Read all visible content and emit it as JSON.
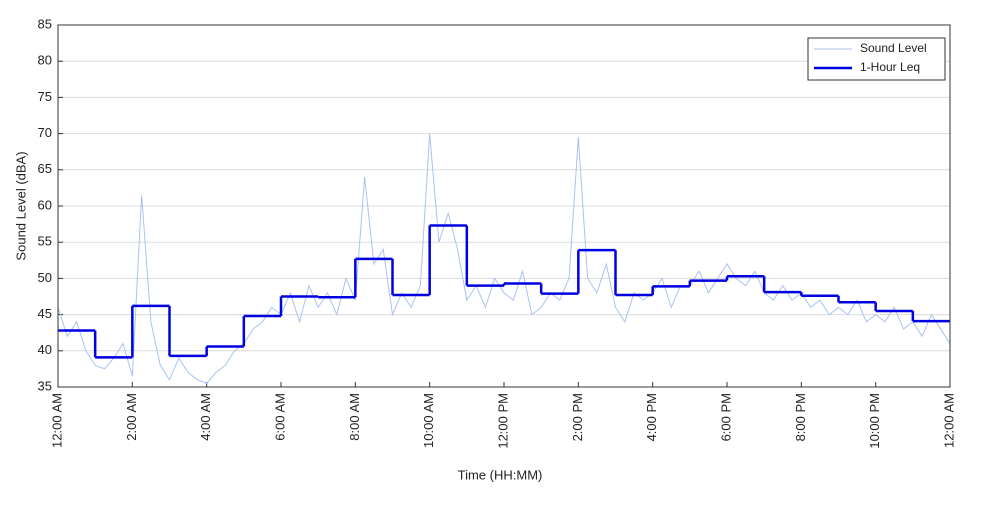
{
  "chart_data": {
    "type": "line",
    "xlabel": "Time (HH:MM)",
    "ylabel": "Sound Level (dBA)",
    "xlim": [
      0,
      24
    ],
    "ylim": [
      35,
      85
    ],
    "xticks": [
      {
        "value": 0,
        "label": "12:00 AM"
      },
      {
        "value": 2,
        "label": "2:00 AM"
      },
      {
        "value": 4,
        "label": "4:00 AM"
      },
      {
        "value": 6,
        "label": "6:00 AM"
      },
      {
        "value": 8,
        "label": "8:00 AM"
      },
      {
        "value": 10,
        "label": "10:00 AM"
      },
      {
        "value": 12,
        "label": "12:00 PM"
      },
      {
        "value": 14,
        "label": "2:00 PM"
      },
      {
        "value": 16,
        "label": "4:00 PM"
      },
      {
        "value": 18,
        "label": "6:00 PM"
      },
      {
        "value": 20,
        "label": "8:00 PM"
      },
      {
        "value": 22,
        "label": "10:00 PM"
      },
      {
        "value": 24,
        "label": "12:00 AM"
      }
    ],
    "yticks": [
      35,
      40,
      45,
      50,
      55,
      60,
      65,
      70,
      75,
      80,
      85
    ],
    "grid": true,
    "legend": "upper right",
    "series": [
      {
        "name": "Sound Level",
        "color": "#a9c2f2",
        "style": "line",
        "x": [
          0,
          0.25,
          0.5,
          0.75,
          1,
          1.25,
          1.5,
          1.75,
          2,
          2.25,
          2.5,
          2.75,
          3,
          3.25,
          3.5,
          3.75,
          4,
          4.25,
          4.5,
          4.75,
          5,
          5.25,
          5.5,
          5.75,
          6,
          6.25,
          6.5,
          6.75,
          7,
          7.25,
          7.5,
          7.75,
          8,
          8.25,
          8.5,
          8.75,
          9,
          9.25,
          9.5,
          9.75,
          10,
          10.25,
          10.5,
          10.75,
          11,
          11.25,
          11.5,
          11.75,
          12,
          12.25,
          12.5,
          12.75,
          13,
          13.25,
          13.5,
          13.75,
          14,
          14.25,
          14.5,
          14.75,
          15,
          15.25,
          15.5,
          15.75,
          16,
          16.25,
          16.5,
          16.75,
          17,
          17.25,
          17.5,
          17.75,
          18,
          18.25,
          18.5,
          18.75,
          19,
          19.25,
          19.5,
          19.75,
          20,
          20.25,
          20.5,
          20.75,
          21,
          21.25,
          21.5,
          21.75,
          22,
          22.25,
          22.5,
          22.75,
          23,
          23.25,
          23.5,
          23.75,
          24
        ],
        "values": [
          46,
          42,
          44,
          40,
          38,
          37.5,
          39,
          41,
          36.5,
          61.5,
          44,
          38,
          36,
          39,
          37,
          36,
          35.5,
          37,
          38,
          40,
          41,
          43,
          44,
          46,
          45,
          48,
          44,
          49,
          46,
          48,
          45,
          50,
          47,
          64,
          52,
          54,
          45,
          48,
          46,
          49,
          70,
          55,
          59,
          54,
          47,
          49,
          46,
          50,
          48,
          47,
          51,
          45,
          46,
          48,
          47,
          50,
          69.5,
          50,
          48,
          52,
          46,
          44,
          48,
          47,
          48,
          50,
          46,
          49,
          49,
          51,
          48,
          50,
          52,
          50,
          49,
          51,
          48,
          47,
          49,
          47,
          48,
          46,
          47,
          45,
          46,
          45,
          47,
          44,
          45,
          44,
          46,
          43,
          44,
          42,
          45,
          43,
          41
        ]
      },
      {
        "name": "1-Hour Leq",
        "color": "#0000e0",
        "style": "step",
        "x": [
          0,
          1,
          2,
          3,
          4,
          5,
          6,
          7,
          8,
          9,
          10,
          11,
          12,
          13,
          14,
          15,
          16,
          17,
          18,
          19,
          20,
          21,
          22,
          23
        ],
        "values": [
          42.8,
          39.1,
          46.2,
          39.3,
          40.6,
          44.8,
          47.5,
          47.4,
          52.7,
          47.7,
          57.3,
          49.0,
          49.3,
          47.9,
          53.9,
          47.7,
          48.9,
          49.7,
          50.3,
          48.1,
          47.6,
          46.7,
          45.5,
          44.1
        ]
      }
    ]
  }
}
